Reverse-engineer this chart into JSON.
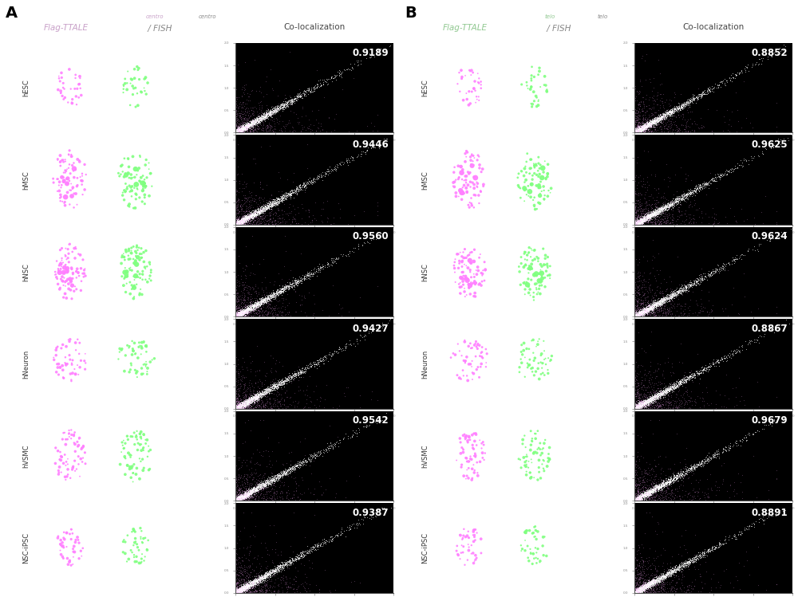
{
  "panel_A_label": "A",
  "panel_B_label": "B",
  "coloc_label": "Co-localization",
  "row_labels": [
    "hESC",
    "hMSC",
    "hNSC",
    "hNeuron",
    "hVSMC",
    "NSC-iPSC"
  ],
  "panel_A_title_main": "Flag-TTALE",
  "panel_A_title_super1": "centro",
  "panel_A_title_slash": " / FISH",
  "panel_A_title_super2": "centro",
  "panel_B_title_main": "Flag-TTALE",
  "panel_B_title_super1": "telo",
  "panel_B_title_slash": " / FISH",
  "panel_B_title_super2": "telo",
  "panel_A_values": [
    "0.9189",
    "0.9446",
    "0.9560",
    "0.9427",
    "0.9542",
    "0.9387"
  ],
  "panel_B_values": [
    "0.8852",
    "0.9625",
    "0.9624",
    "0.8867",
    "0.9679",
    "0.8891"
  ],
  "fig_bg": "#ffffff",
  "cell_bg": "#000000",
  "title_color_A": "#c8a0c8",
  "title_color_B": "#90c890",
  "slash_color": "#888888",
  "coloc_color": "#444444",
  "label_color": "#333333",
  "panel_letter_color": "#000000"
}
